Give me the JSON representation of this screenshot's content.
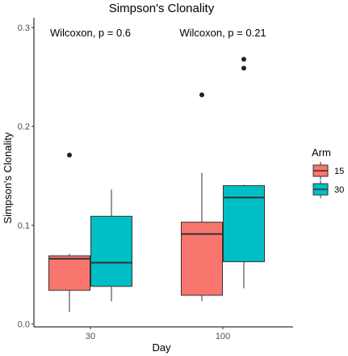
{
  "chart_data": {
    "type": "box",
    "title": "Simpson's Clonality",
    "xlabel": "Day",
    "ylabel": "Simpson's Clonality",
    "categories": [
      "30",
      "100"
    ],
    "ylim": [
      -0.003,
      0.31
    ],
    "yticks": [
      0.0,
      0.1,
      0.2,
      0.3
    ],
    "ytick_labels": [
      "0.0",
      "0.1",
      "0.2",
      "0.3"
    ],
    "grid": false,
    "legend": {
      "title": "Arm",
      "position": "right",
      "entries": [
        {
          "label": "15",
          "color": "#F8766D"
        },
        {
          "label": "30",
          "color": "#00BFC4"
        }
      ]
    },
    "annotations": [
      {
        "category": "30",
        "text": "Wilcoxon, p = 0.6"
      },
      {
        "category": "100",
        "text": "Wilcoxon, p = 0.21"
      }
    ],
    "series": [
      {
        "arm": "15",
        "color": "#F8766D",
        "boxes": [
          {
            "category": "30",
            "whisker_low": 0.012,
            "q1": 0.034,
            "median": 0.066,
            "q3": 0.069,
            "whisker_high": 0.071,
            "outliers": [
              0.171
            ]
          },
          {
            "category": "100",
            "whisker_low": 0.023,
            "q1": 0.029,
            "median": 0.091,
            "q3": 0.103,
            "whisker_high": 0.153,
            "outliers": [
              0.232
            ]
          }
        ]
      },
      {
        "arm": "30",
        "color": "#00BFC4",
        "boxes": [
          {
            "category": "30",
            "whisker_low": 0.023,
            "q1": 0.038,
            "median": 0.062,
            "q3": 0.109,
            "whisker_high": 0.136,
            "outliers": []
          },
          {
            "category": "100",
            "whisker_low": 0.036,
            "q1": 0.063,
            "median": 0.128,
            "q3": 0.14,
            "whisker_high": 0.141,
            "outliers": [
              0.259,
              0.268
            ]
          }
        ]
      }
    ]
  }
}
